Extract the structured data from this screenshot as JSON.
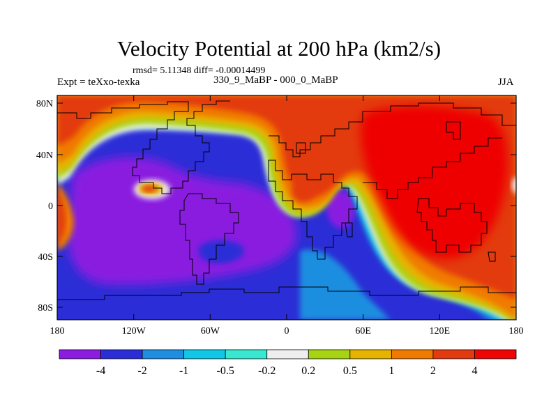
{
  "title": "Velocity Potential at 200 hPa (km2/s)",
  "stats": "rmsd= 5.11348 diff= -0.00014499",
  "left_string": "Expt = teXxo-texka",
  "center_string": "330_9_MaBP - 000_0_MaBP",
  "right_string": "JJA",
  "axes": {
    "lon_ticks": [
      "180",
      "120W",
      "60W",
      "0",
      "60E",
      "120E",
      "180"
    ],
    "lat_ticks": [
      "80N",
      "40N",
      "0",
      "40S",
      "80S"
    ]
  },
  "colorbar": {
    "colors": [
      "#8a1de0",
      "#2b2ed6",
      "#1f8ee0",
      "#10c8e6",
      "#38e8d0",
      "#eeeeee",
      "#a6d412",
      "#e6b400",
      "#f07a00",
      "#e33a10",
      "#ee0505"
    ],
    "labels": [
      "-4",
      "-2",
      "-1",
      "-0.5",
      "-0.2",
      "0.2",
      "0.5",
      "1",
      "2",
      "4"
    ]
  }
}
